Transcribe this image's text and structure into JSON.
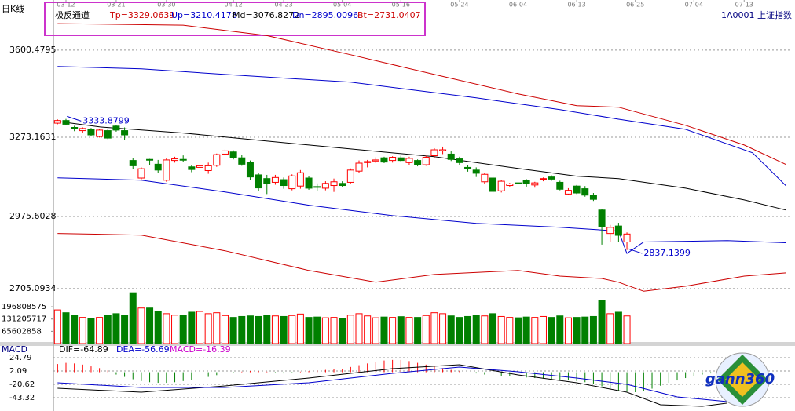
{
  "chart_data": [
    {
      "type": "candlestick",
      "title": "日K线",
      "indicator": "极反通道",
      "indicator_values": [
        "Tp=3329.0639",
        "Up=3210.4178",
        "Md=3076.8272",
        "Dn=2895.0096",
        "Bt=2731.0407"
      ],
      "symbol": "1A0001 上证指数",
      "xlim": [
        -0.5,
        87.7
      ],
      "xticks": [
        {
          "value": 1,
          "label": "03-12"
        },
        {
          "value": 7,
          "label": "03-21"
        },
        {
          "value": 13,
          "label": "03-30"
        },
        {
          "value": 21,
          "label": "04-12"
        },
        {
          "value": 27,
          "label": "04-23"
        },
        {
          "value": 34,
          "label": "05-04"
        },
        {
          "value": 41,
          "label": "05-16"
        },
        {
          "value": 48,
          "label": "05-24"
        },
        {
          "value": 55,
          "label": "06-04"
        },
        {
          "value": 62,
          "label": "06-13"
        },
        {
          "value": 69,
          "label": "06-25"
        },
        {
          "value": 76,
          "label": "07-04"
        },
        {
          "value": 82,
          "label": "07-13"
        }
      ],
      "ylim": [
        2693,
        3765
      ],
      "yticks": [
        3600.4795,
        3273.1631,
        2975.6028,
        2705.0934
      ],
      "grid": true,
      "up_color": "#ff0000",
      "down_color": "#008000",
      "open": [
        3326,
        3336,
        3310,
        3298,
        3302,
        3276,
        3298,
        3315,
        3298,
        3186,
        3120,
        3190,
        3172,
        3112,
        3186,
        3190,
        3162,
        3160,
        3148,
        3168,
        3210,
        3218,
        3196,
        3178,
        3132,
        3118,
        3104,
        3114,
        3080,
        3090,
        3120,
        3088,
        3082,
        3092,
        3100,
        3104,
        3146,
        3178,
        3184,
        3196,
        3186,
        3196,
        3178,
        3186,
        3170,
        3204,
        3222,
        3210,
        3192,
        3160,
        3150,
        3106,
        3120,
        3072,
        3092,
        3102,
        3110,
        3094,
        3116,
        3124,
        3104,
        3060,
        3090,
        3080,
        3056,
        3000,
        2912,
        2940,
        2880
      ],
      "high": [
        3340,
        3342,
        3316,
        3310,
        3308,
        3304,
        3306,
        3320,
        3310,
        3196,
        3160,
        3192,
        3188,
        3194,
        3200,
        3205,
        3168,
        3172,
        3178,
        3212,
        3230,
        3224,
        3206,
        3186,
        3138,
        3132,
        3132,
        3122,
        3134,
        3150,
        3126,
        3100,
        3108,
        3118,
        3108,
        3156,
        3186,
        3188,
        3198,
        3200,
        3202,
        3204,
        3200,
        3190,
        3204,
        3232,
        3238,
        3220,
        3200,
        3168,
        3160,
        3140,
        3126,
        3112,
        3102,
        3108,
        3116,
        3106,
        3122,
        3130,
        3110,
        3082,
        3094,
        3090,
        3064,
        3004,
        2944,
        2952,
        2916
      ],
      "low": [
        3322,
        3318,
        3296,
        3290,
        3276,
        3272,
        3266,
        3294,
        3262,
        3155,
        3115,
        3170,
        3140,
        3106,
        3178,
        3180,
        3142,
        3154,
        3136,
        3162,
        3204,
        3190,
        3166,
        3114,
        3071,
        3060,
        3095,
        3080,
        3074,
        3080,
        3076,
        3070,
        3074,
        3068,
        3086,
        3100,
        3140,
        3160,
        3176,
        3176,
        3178,
        3180,
        3168,
        3164,
        3166,
        3196,
        3210,
        3184,
        3168,
        3144,
        3124,
        3098,
        3064,
        3066,
        3088,
        3090,
        3088,
        3084,
        3108,
        3110,
        3074,
        3056,
        3060,
        3050,
        3034,
        2870,
        2880,
        2880,
        2850
      ],
      "close": [
        3336,
        3322,
        3305,
        3306,
        3282,
        3300,
        3270,
        3300,
        3282,
        3166,
        3155,
        3188,
        3150,
        3188,
        3192,
        3188,
        3152,
        3166,
        3166,
        3208,
        3222,
        3196,
        3172,
        3124,
        3083,
        3100,
        3122,
        3092,
        3128,
        3140,
        3082,
        3086,
        3100,
        3106,
        3092,
        3150,
        3176,
        3182,
        3188,
        3180,
        3198,
        3186,
        3194,
        3170,
        3198,
        3226,
        3226,
        3190,
        3178,
        3154,
        3138,
        3134,
        3070,
        3108,
        3098,
        3100,
        3100,
        3102,
        3118,
        3116,
        3078,
        3074,
        3064,
        3056,
        3040,
        2936,
        2935,
        2905,
        2910
      ],
      "lines": [
        {
          "color": "#cc0000",
          "x": [
            0,
            15,
            25,
            35,
            45,
            55,
            62,
            67,
            75,
            82,
            87
          ],
          "values": [
            3700,
            3694,
            3655,
            3583,
            3509,
            3436,
            3392,
            3386,
            3318,
            3244,
            3171
          ]
        },
        {
          "color": "#0000cc",
          "x": [
            0,
            10,
            20,
            35,
            50,
            60,
            67,
            75,
            83,
            87
          ],
          "values": [
            3539,
            3530,
            3509,
            3480,
            3421,
            3377,
            3341,
            3303,
            3215,
            3091
          ]
        },
        {
          "color": "#000000",
          "x": [
            0,
            5,
            15,
            30,
            45,
            55,
            62,
            67,
            75,
            82,
            87
          ],
          "values": [
            3333,
            3312,
            3289,
            3244,
            3200,
            3156,
            3127,
            3118,
            3082,
            3038,
            3000
          ]
        },
        {
          "color": "#0000cc",
          "x": [
            0,
            10,
            20,
            30,
            40,
            50,
            60,
            67,
            68,
            70,
            80,
            87
          ],
          "values": [
            3121,
            3112,
            3068,
            3018,
            2979,
            2950,
            2935,
            2921,
            2837,
            2880,
            2885,
            2877
          ]
        },
        {
          "color": "#cc0000",
          "x": [
            0,
            10,
            20,
            30,
            38,
            45,
            55,
            60,
            65,
            67,
            70,
            75,
            82,
            87
          ],
          "values": [
            2912,
            2906,
            2847,
            2773,
            2729,
            2758,
            2773,
            2752,
            2743,
            2729,
            2695,
            2714,
            2752,
            2764
          ]
        }
      ],
      "annotations": [
        {
          "x": 3,
          "value": 3333.8799
        },
        {
          "x": 70,
          "value": 2837.1399
        }
      ]
    },
    {
      "type": "bar",
      "values": [
        180000000,
        165000000,
        150000000,
        140000000,
        135000000,
        140000000,
        150000000,
        160000000,
        152000000,
        272000000,
        190000000,
        190000000,
        170000000,
        160000000,
        152000000,
        150000000,
        168000000,
        172000000,
        160000000,
        165000000,
        150000000,
        140000000,
        145000000,
        148000000,
        145000000,
        150000000,
        148000000,
        145000000,
        150000000,
        158000000,
        140000000,
        142000000,
        138000000,
        140000000,
        135000000,
        152000000,
        160000000,
        148000000,
        138000000,
        142000000,
        140000000,
        144000000,
        140000000,
        140000000,
        150000000,
        165000000,
        160000000,
        148000000,
        140000000,
        145000000,
        150000000,
        148000000,
        160000000,
        145000000,
        140000000,
        138000000,
        142000000,
        140000000,
        145000000,
        140000000,
        148000000,
        138000000,
        140000000,
        142000000,
        145000000,
        230000000,
        160000000,
        168000000,
        148000000
      ],
      "ylim": [
        0,
        277000000
      ],
      "yticks": [
        196808575,
        131205717,
        65602858
      ]
    },
    {
      "type": "macd",
      "title": "MACD",
      "legend": [
        "DIF=-64.89",
        "DEA=-56.69",
        "MACD=-16.39"
      ],
      "dif_color": "#000000",
      "dea_color": "#0000cc",
      "macd_color": "#cc00cc",
      "histogram": [
        14,
        16,
        15,
        13,
        10,
        7,
        3,
        -4,
        -8,
        -12,
        -15,
        -17,
        -18,
        -18,
        -17,
        -15,
        -13,
        -11,
        -8,
        -5,
        -2,
        -1,
        1,
        2,
        2,
        1,
        -1,
        -2,
        -1,
        1,
        2,
        3,
        4,
        5,
        6,
        9,
        12,
        15,
        18,
        20,
        21,
        21,
        19,
        16,
        13,
        10,
        7,
        4,
        2,
        0,
        -2,
        -4,
        -5,
        -6,
        -7,
        -8,
        -9,
        -10,
        -11,
        -12,
        -13,
        -14,
        -15,
        -17,
        -20,
        -24,
        -28,
        -31,
        -33,
        -34,
        -32,
        -28,
        -23,
        -18,
        -14,
        -10,
        -7,
        -4,
        -2,
        -1
      ],
      "dif": {
        "x": [
          0,
          10,
          20,
          30,
          40,
          48,
          55,
          62,
          68,
          72,
          77,
          80
        ],
        "values": [
          -27.3,
          -34,
          -23.3,
          -9.9,
          6.1,
          12.8,
          -4.6,
          -17.9,
          -34,
          -55.3,
          -58,
          -52.6
        ]
      },
      "dea": {
        "x": [
          0,
          10,
          20,
          30,
          40,
          48,
          55,
          62,
          68,
          74,
          80
        ],
        "values": [
          -17.9,
          -25.9,
          -25.9,
          -17.9,
          -1.9,
          8.8,
          0.8,
          -9.9,
          -20.6,
          -42,
          -50
        ]
      },
      "ylim": [
        -60.7,
        43.5
      ],
      "yticks": [
        24.79,
        2.09,
        -20.62,
        -43.32
      ]
    }
  ],
  "logo": "gann360"
}
